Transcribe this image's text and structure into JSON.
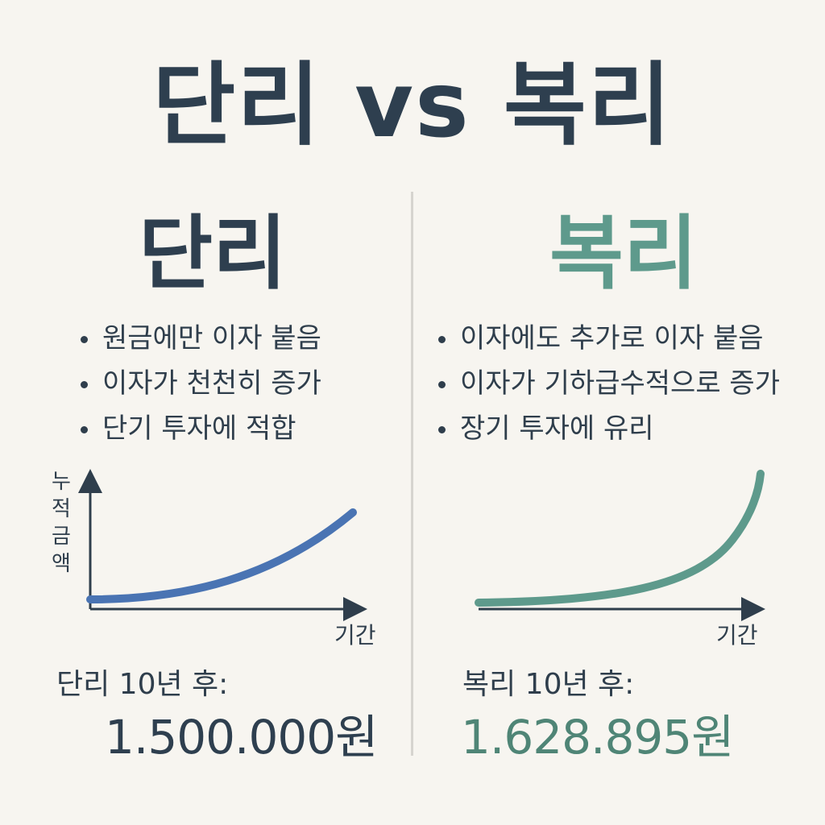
{
  "title": "단리 vs 복리",
  "simple": {
    "heading": "단리",
    "bullets": [
      "원금에만 이자 붙음",
      "이자가 천천히 증가",
      "단기 투자에 적합"
    ],
    "result_label": "단리 10년 후:",
    "result_value": "1.500.000원",
    "color": "#4a74b3"
  },
  "compound": {
    "heading": "복리",
    "bullets": [
      "이자에도 추가로 이자 붙음",
      "이자가 기하급수적으로 증가",
      "장기 투자에 유리"
    ],
    "result_label": "복리 10년 후:",
    "result_value": "1.628.895원",
    "color": "#5e9a8c"
  },
  "chart_data": [
    {
      "type": "line",
      "ylabel": "누적 금액",
      "xlabel": "기간",
      "grid": false,
      "shape": "gentle upward curve",
      "color": "#4a74b3"
    },
    {
      "type": "line",
      "ylabel": "",
      "xlabel": "기간",
      "grid": false,
      "shape": "exponential upward curve",
      "color": "#5e9a8c"
    }
  ]
}
